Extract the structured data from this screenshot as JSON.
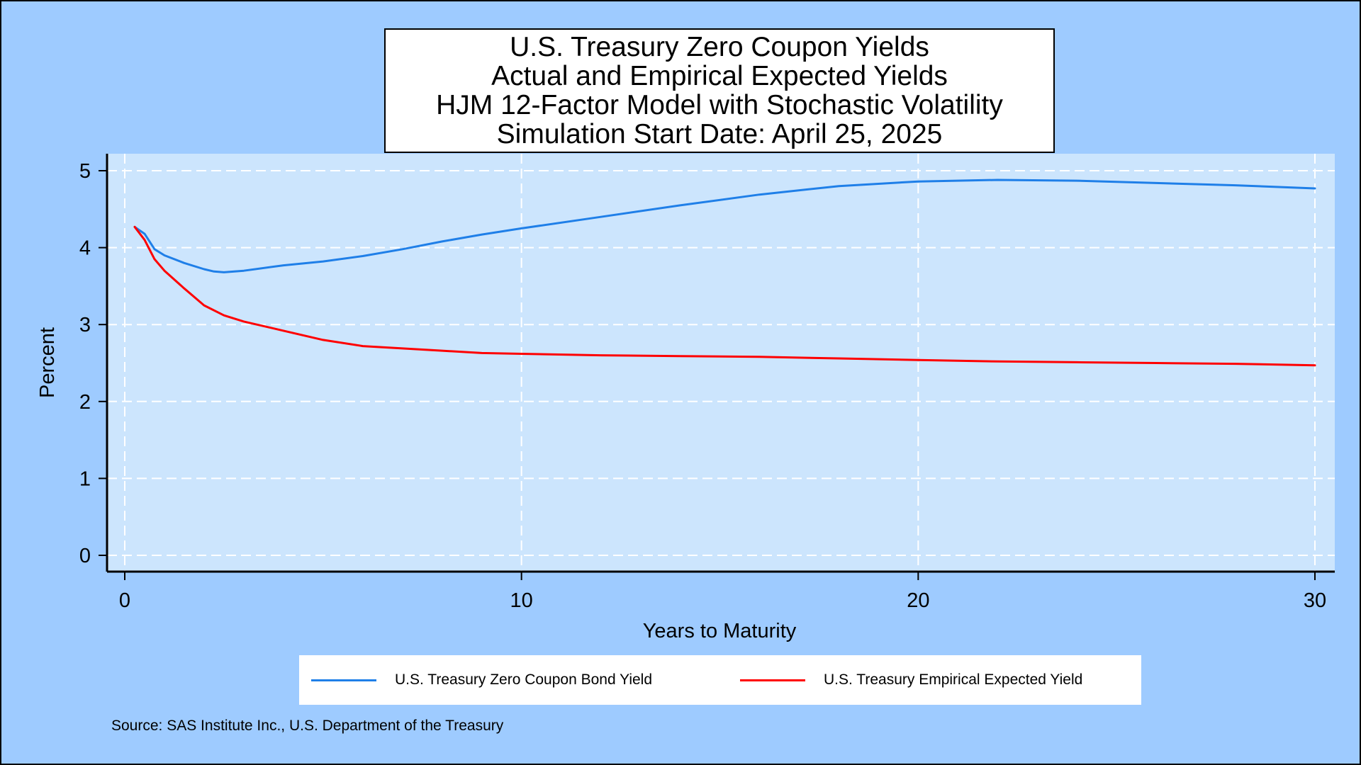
{
  "chart_data": {
    "type": "line",
    "title": [
      "U.S. Treasury Zero Coupon Yields",
      "Actual and Empirical Expected Yields",
      "HJM 12-Factor Model with Stochastic Volatility",
      "Simulation Start Date: April 25, 2025"
    ],
    "xlabel": "Years to Maturity",
    "ylabel": "Percent",
    "xlim": [
      0,
      30
    ],
    "ylim": [
      0,
      5
    ],
    "xticks": [
      0,
      10,
      20,
      30
    ],
    "yticks": [
      0,
      1,
      2,
      3,
      4,
      5
    ],
    "xtick_labels": [
      "0",
      "10",
      "20",
      "30"
    ],
    "ytick_labels": [
      "0",
      "1",
      "2",
      "3",
      "4",
      "5"
    ],
    "grid": true,
    "legend_position": "bottom",
    "source": "Source: SAS Institute Inc., U.S. Department of the Treasury",
    "series": [
      {
        "name": "U.S. Treasury Zero Coupon Bond Yield",
        "color": "#1f7fe8",
        "x": [
          0.25,
          0.5,
          0.75,
          1,
          1.5,
          2,
          2.25,
          2.5,
          3,
          4,
          5,
          6,
          7,
          8,
          9,
          10,
          12,
          14,
          16,
          18,
          20,
          22,
          24,
          26,
          28,
          30
        ],
        "y": [
          4.27,
          4.18,
          3.98,
          3.9,
          3.8,
          3.72,
          3.69,
          3.68,
          3.7,
          3.77,
          3.82,
          3.89,
          3.98,
          4.08,
          4.17,
          4.25,
          4.4,
          4.55,
          4.69,
          4.8,
          4.86,
          4.88,
          4.87,
          4.84,
          4.81,
          4.77
        ]
      },
      {
        "name": "U.S. Treasury Empirical Expected Yield",
        "color": "#ff0000",
        "x": [
          0.25,
          0.5,
          0.75,
          1,
          1.5,
          2,
          2.5,
          3,
          4,
          5,
          6,
          7,
          8,
          9,
          10,
          12,
          14,
          16,
          18,
          20,
          22,
          24,
          26,
          28,
          30
        ],
        "y": [
          4.27,
          4.1,
          3.85,
          3.7,
          3.47,
          3.25,
          3.12,
          3.04,
          2.92,
          2.8,
          2.72,
          2.69,
          2.66,
          2.63,
          2.62,
          2.6,
          2.59,
          2.58,
          2.56,
          2.54,
          2.52,
          2.51,
          2.5,
          2.49,
          2.47
        ]
      }
    ]
  }
}
